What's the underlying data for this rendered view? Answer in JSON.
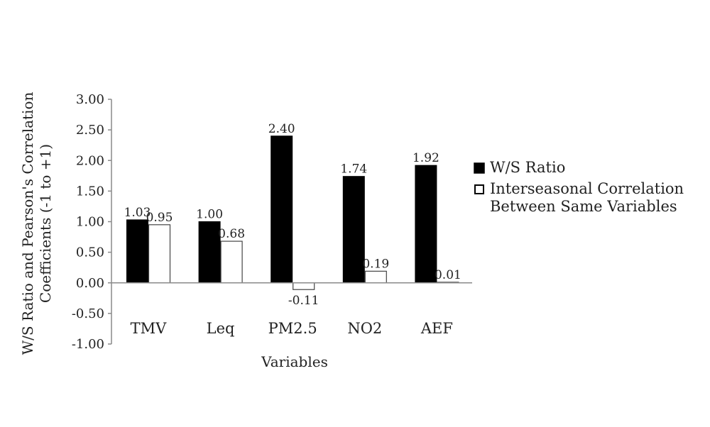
{
  "chart_data": {
    "type": "bar",
    "title": "",
    "xlabel": "Variables",
    "ylabel_lines": [
      "W/S Ratio and Pearson's Correlation",
      "Coefficients (-1 to +1)"
    ],
    "categories": [
      "TMV",
      "Leq",
      "PM2.5",
      "NO2",
      "AEF"
    ],
    "series": [
      {
        "name": "W/S Ratio",
        "values": [
          1.03,
          1.0,
          2.4,
          1.74,
          1.92
        ],
        "labels": [
          "1.03",
          "1.00",
          "2.40",
          "1.74",
          "1.92"
        ],
        "color": "#000000"
      },
      {
        "name": "Interseasonal Correlation Between Same Variables",
        "name_lines": [
          "Interseasonal Correlation",
          "Between Same Variables"
        ],
        "values": [
          0.95,
          0.68,
          -0.11,
          0.19,
          0.01
        ],
        "labels": [
          "0.95",
          "0.68",
          "-0.11",
          "0.19",
          "0.01"
        ],
        "color": "#ffffff"
      }
    ],
    "ylim": [
      -1.0,
      3.0
    ],
    "yticks": [
      "3.00",
      "2.50",
      "2.00",
      "1.50",
      "1.00",
      "0.50",
      "0.00",
      "-0.50",
      "-1.00"
    ],
    "ytick_values": [
      3.0,
      2.5,
      2.0,
      1.5,
      1.0,
      0.5,
      0.0,
      -0.5,
      -1.0
    ],
    "grid": false,
    "legend_position": "right"
  }
}
